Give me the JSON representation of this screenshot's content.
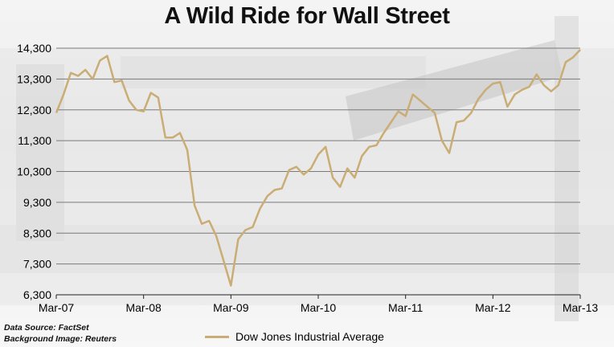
{
  "title": "A Wild Ride for Wall Street",
  "footnotes": {
    "source": "Data Source: FactSet",
    "background": "Background Image: Reuters"
  },
  "colors": {
    "series": "#c9ad74",
    "grid": "#7a7a7a",
    "background": "#efefef"
  },
  "chart_data": {
    "type": "line",
    "title": "A Wild Ride for Wall Street",
    "xlabel": "",
    "ylabel": "",
    "ylim": [
      6300,
      14300
    ],
    "yticks": [
      14300,
      13300,
      12300,
      11300,
      10300,
      9300,
      8300,
      7300,
      6300
    ],
    "ytick_labels": [
      "14,300",
      "13,300",
      "12,300",
      "11,300",
      "10,300",
      "9,300",
      "8,300",
      "7,300",
      "6,300"
    ],
    "xlim": [
      "2007-03",
      "2013-03"
    ],
    "xtick_labels": [
      "Mar-07",
      "Mar-08",
      "Mar-09",
      "Mar-10",
      "Mar-11",
      "Mar-12",
      "Mar-13"
    ],
    "grid": "horizontal",
    "legend": "bottom",
    "series": [
      {
        "name": "Dow Jones Industrial Average",
        "x": [
          "2007-03",
          "2007-04",
          "2007-05",
          "2007-06",
          "2007-07",
          "2007-08",
          "2007-09",
          "2007-10",
          "2007-11",
          "2007-12",
          "2008-01",
          "2008-02",
          "2008-03",
          "2008-04",
          "2008-05",
          "2008-06",
          "2008-07",
          "2008-08",
          "2008-09",
          "2008-10",
          "2008-11",
          "2008-12",
          "2009-01",
          "2009-02",
          "2009-03",
          "2009-04",
          "2009-05",
          "2009-06",
          "2009-07",
          "2009-08",
          "2009-09",
          "2009-10",
          "2009-11",
          "2009-12",
          "2010-01",
          "2010-02",
          "2010-03",
          "2010-04",
          "2010-05",
          "2010-06",
          "2010-07",
          "2010-08",
          "2010-09",
          "2010-10",
          "2010-11",
          "2010-12",
          "2011-01",
          "2011-02",
          "2011-03",
          "2011-04",
          "2011-05",
          "2011-06",
          "2011-07",
          "2011-08",
          "2011-09",
          "2011-10",
          "2011-11",
          "2011-12",
          "2012-01",
          "2012-02",
          "2012-03",
          "2012-04",
          "2012-05",
          "2012-06",
          "2012-07",
          "2012-08",
          "2012-09",
          "2012-10",
          "2012-11",
          "2012-12",
          "2013-01",
          "2013-02",
          "2013-03"
        ],
        "values": [
          12200,
          12800,
          13500,
          13400,
          13600,
          13300,
          13900,
          14050,
          13200,
          13250,
          12600,
          12300,
          12250,
          12850,
          12700,
          11400,
          11400,
          11550,
          11000,
          9200,
          8600,
          8700,
          8200,
          7400,
          6600,
          8100,
          8400,
          8500,
          9100,
          9500,
          9700,
          9750,
          10350,
          10450,
          10200,
          10400,
          10850,
          11100,
          10100,
          9800,
          10400,
          10100,
          10800,
          11100,
          11150,
          11550,
          11900,
          12250,
          12100,
          12800,
          12600,
          12400,
          12200,
          11300,
          10900,
          11900,
          11950,
          12200,
          12650,
          12950,
          13150,
          13200,
          12400,
          12800,
          12950,
          13050,
          13450,
          13100,
          12900,
          13100,
          13850,
          14000,
          14250
        ]
      }
    ]
  },
  "legend": {
    "label": "Dow Jones Industrial Average"
  }
}
